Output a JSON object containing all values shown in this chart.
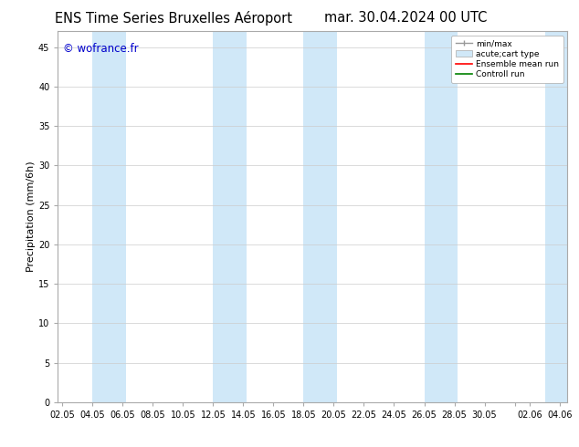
{
  "title_left": "ENS Time Series Bruxelles Aéroport",
  "title_right": "mar. 30.04.2024 00 UTC",
  "ylabel": "Precipitation (mm/6h)",
  "watermark": "© wofrance.fr",
  "ylim": [
    0,
    47
  ],
  "yticks": [
    0,
    5,
    10,
    15,
    20,
    25,
    30,
    35,
    40,
    45
  ],
  "xtick_labels": [
    "02.05",
    "04.05",
    "06.05",
    "08.05",
    "10.05",
    "12.05",
    "14.05",
    "16.05",
    "18.05",
    "20.05",
    "22.05",
    "24.05",
    "26.05",
    "28.05",
    "30.05",
    "",
    "02.06",
    "04.06"
  ],
  "x_ticks_pos": [
    0,
    2,
    4,
    6,
    8,
    10,
    12,
    14,
    16,
    18,
    20,
    22,
    24,
    26,
    28,
    30,
    31,
    33
  ],
  "xlim": [
    -0.3,
    33.5
  ],
  "shade_color": "#d0e8f8",
  "bg_color": "#ffffff",
  "legend_labels": [
    "min/max",
    "acute;cart type",
    "Ensemble mean run",
    "Controll run"
  ],
  "title_fontsize": 10.5,
  "label_fontsize": 8,
  "tick_fontsize": 7,
  "watermark_color": "#0000cc",
  "shade_x": [
    [
      2.0,
      4.2
    ],
    [
      10.0,
      12.2
    ],
    [
      16.0,
      18.2
    ],
    [
      24.0,
      26.2
    ],
    [
      32.0,
      33.5
    ]
  ]
}
